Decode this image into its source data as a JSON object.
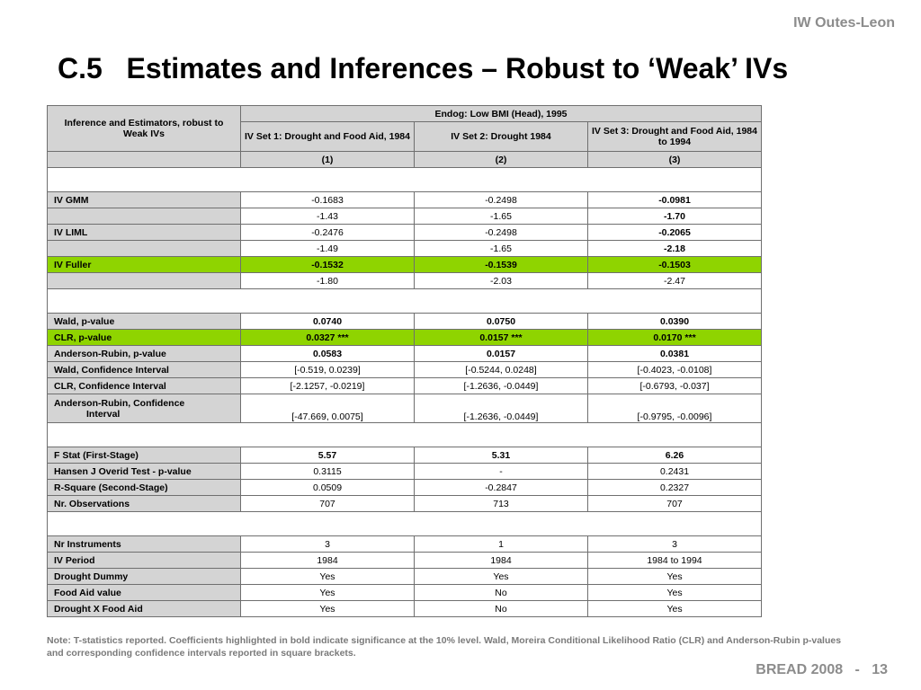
{
  "header_right": "IW Outes-Leon",
  "title": "C.5   Estimates and Inferences – Robust to ‘Weak’ IVs",
  "table": {
    "corner_label": "Inference and Estimators, robust to Weak IVs",
    "group_header": "Endog: Low BMI (Head), 1995",
    "columns": [
      "IV Set 1: Drought and Food Aid, 1984",
      "IV Set 2: Drought 1984",
      "IV Set 3: Drought and Food Aid, 1984 to 1994"
    ],
    "col_numbers": [
      "(1)",
      "(2)",
      "(3)"
    ],
    "rows": {
      "iv_gmm": {
        "label": "IV GMM",
        "est": [
          "-0.1683",
          "-0.2498",
          "-0.0981"
        ],
        "t": [
          "-1.43",
          "-1.65",
          "-1.70"
        ]
      },
      "iv_liml": {
        "label": "IV LIML",
        "est": [
          "-0.2476",
          "-0.2498",
          "-0.2065"
        ],
        "t": [
          "-1.49",
          "-1.65",
          "-2.18"
        ]
      },
      "iv_fuller": {
        "label": "IV Fuller",
        "est": [
          "-0.1532",
          "-0.1539",
          "-0.1503"
        ],
        "t": [
          "-1.80",
          "-2.03",
          "-2.47"
        ]
      },
      "wald_p": {
        "label": "Wald, p-value",
        "values": [
          "0.0740",
          "0.0750",
          "0.0390"
        ]
      },
      "clr_p": {
        "label": "CLR, p-value",
        "values": [
          "0.0327 ***",
          "0.0157 ***",
          "0.0170 ***"
        ]
      },
      "ar_p": {
        "label": "Anderson-Rubin, p-value",
        "values": [
          "0.0583",
          "0.0157",
          "0.0381"
        ]
      },
      "wald_ci": {
        "label": "Wald, Confidence Interval",
        "values": [
          "[-0.519, 0.0239]",
          "[-0.5244, 0.0248]",
          "[-0.4023, -0.0108]"
        ]
      },
      "clr_ci": {
        "label": "CLR, Confidence Interval",
        "values": [
          "[-2.1257, -0.0219]",
          "[-1.2636, -0.0449]",
          "[-0.6793, -0.037]"
        ]
      },
      "ar_ci": {
        "label_line1": "Anderson-Rubin, Confidence",
        "label_line2": "Interval",
        "values": [
          "[-47.669, 0.0075]",
          "[-1.2636, -0.0449]",
          "[-0.9795, -0.0096]"
        ]
      },
      "fstat": {
        "label": "F Stat (First-Stage)",
        "values": [
          "5.57",
          "5.31",
          "6.26"
        ]
      },
      "hansen": {
        "label": "Hansen J Overid Test - p-value",
        "values": [
          "0.3115",
          "-",
          "0.2431"
        ]
      },
      "rsq": {
        "label": "R-Square (Second-Stage)",
        "values": [
          "0.0509",
          "-0.2847",
          "0.2327"
        ]
      },
      "nobs": {
        "label": "Nr. Observations",
        "values": [
          "707",
          "713",
          "707"
        ]
      },
      "ninst": {
        "label": "Nr Instruments",
        "values": [
          "3",
          "1",
          "3"
        ]
      },
      "ivperiod": {
        "label": "IV Period",
        "values": [
          "1984",
          "1984",
          "1984 to 1994"
        ]
      },
      "drought": {
        "label": "Drought Dummy",
        "values": [
          "Yes",
          "Yes",
          "Yes"
        ]
      },
      "foodaid": {
        "label": "Food Aid value",
        "values": [
          "Yes",
          "No",
          "Yes"
        ]
      },
      "dxf": {
        "label": "Drought X Food Aid",
        "values": [
          "Yes",
          "No",
          "Yes"
        ]
      }
    }
  },
  "note": "Note:  T-statistics reported.  Coefficients highlighted in bold indicate significance at the 10% level.  Wald, Moreira Conditional Likelihood Ratio (CLR) and Anderson-Rubin p-values and corresponding confidence intervals reported in square brackets.",
  "footer": "BREAD 2008   -   13",
  "colors": {
    "highlight_green": "#8fd400",
    "label_gray": "#d4d4d4",
    "header_text_gray": "#8c8c8c"
  }
}
